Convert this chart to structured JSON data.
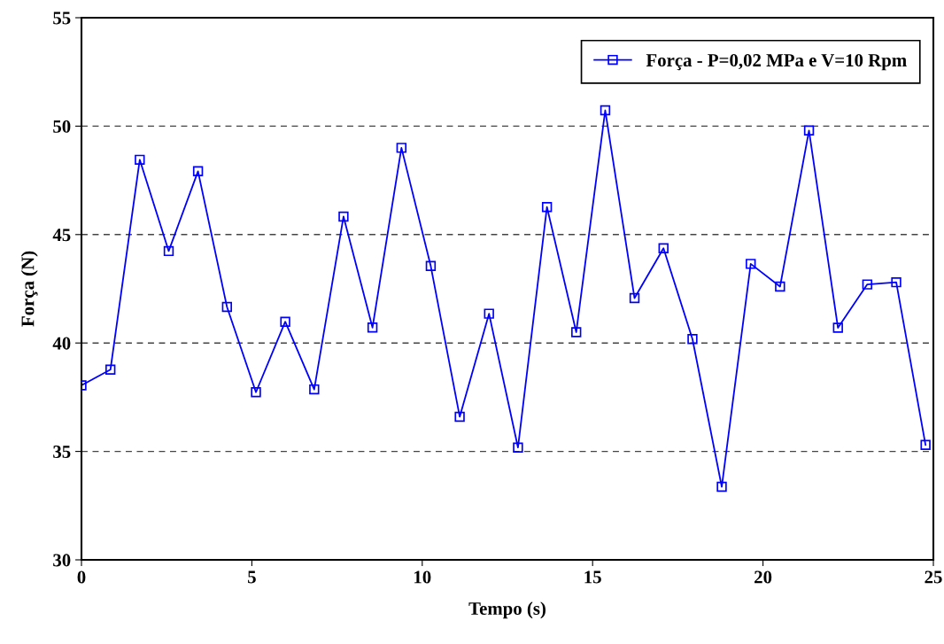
{
  "chart_data": {
    "type": "line",
    "xlabel": "Tempo (s)",
    "ylabel": "Força (N)",
    "xlim": [
      0,
      25
    ],
    "xticks": [
      0,
      5,
      10,
      15,
      20,
      25
    ],
    "ylim": [
      30,
      55
    ],
    "yticks": [
      30,
      35,
      40,
      45,
      50,
      55
    ],
    "grid": "y",
    "legend": "top right",
    "marker": "square",
    "line_style": "solid",
    "x": [
      0,
      0.85,
      1.71,
      2.56,
      3.42,
      4.27,
      5.12,
      5.98,
      6.83,
      7.69,
      8.54,
      9.39,
      10.25,
      11.1,
      11.96,
      12.81,
      13.66,
      14.52,
      15.37,
      16.23,
      17.08,
      17.93,
      18.79,
      19.64,
      20.5,
      21.35,
      22.2,
      23.06,
      23.91,
      24.77
    ],
    "series": [
      {
        "name": "Força - P=0,02 MPa e V=10 Rpm",
        "color": "#0000ff",
        "values": [
          38.05,
          38.77,
          48.45,
          44.24,
          47.92,
          41.66,
          37.73,
          40.98,
          37.86,
          45.83,
          40.71,
          49.0,
          43.55,
          36.6,
          41.35,
          35.18,
          46.27,
          40.5,
          50.73,
          42.07,
          44.37,
          40.18,
          33.37,
          43.65,
          42.6,
          49.8,
          40.7,
          42.7,
          42.8,
          35.3
        ]
      }
    ]
  }
}
